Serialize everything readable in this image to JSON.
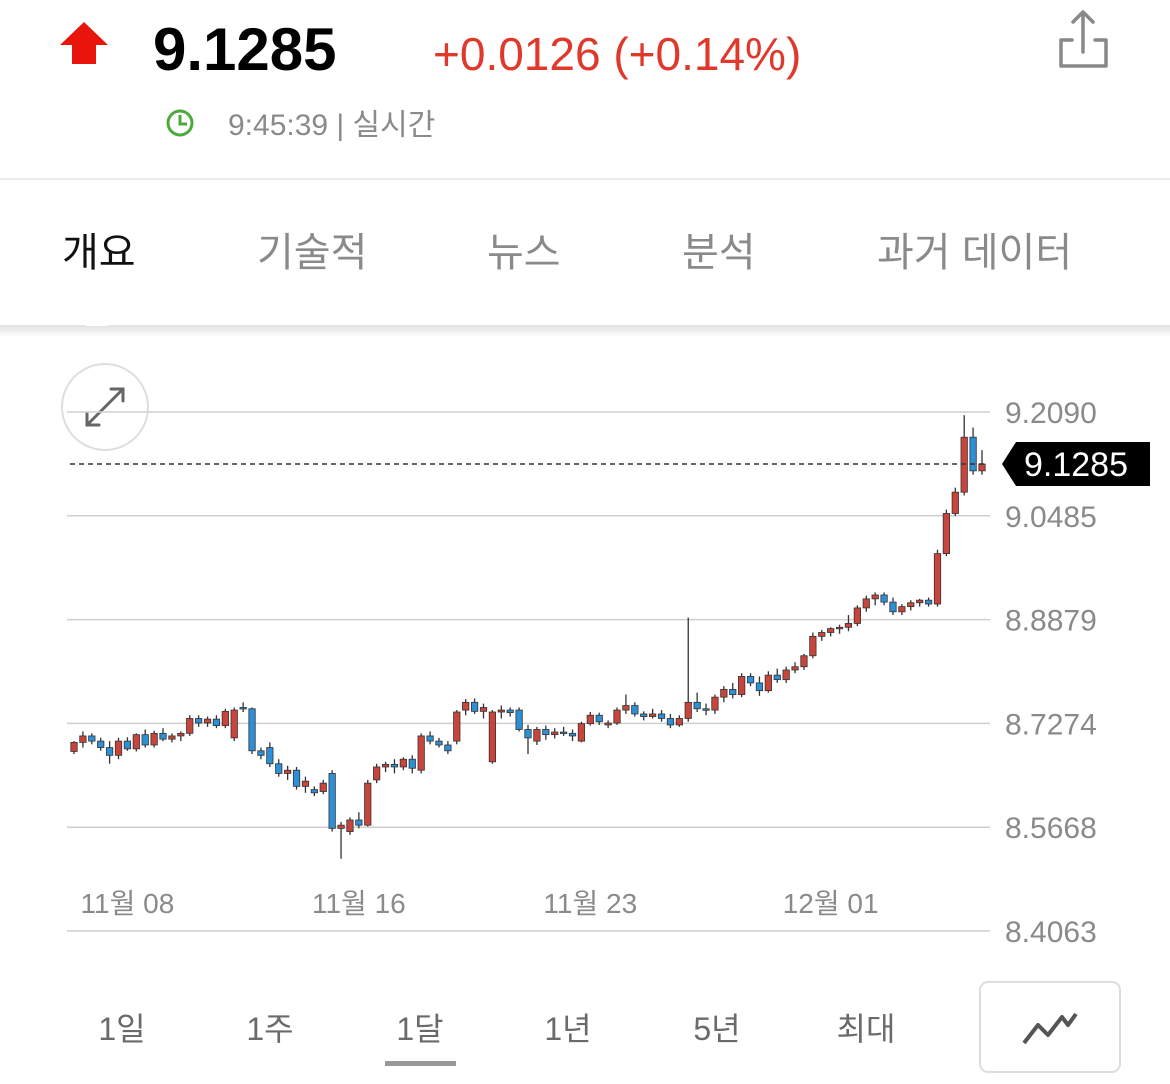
{
  "header": {
    "price": "9.1285",
    "change": "+0.0126 (+0.14%)",
    "time": "9:45:39 | 실시간"
  },
  "tabs": [
    "개요",
    "기술적",
    "뉴스",
    "분석",
    "과거 데이터"
  ],
  "chart_data": {
    "type": "candlestick",
    "categories": [
      null,
      null,
      null,
      null,
      null,
      null,
      "11월 08",
      null,
      null,
      null,
      null,
      null,
      null,
      null,
      null,
      null,
      null,
      null,
      null,
      null,
      null,
      null,
      null,
      null,
      null,
      null,
      null,
      null,
      null,
      null,
      null,
      null,
      "11월 16",
      null,
      null,
      null,
      null,
      null,
      null,
      null,
      null,
      null,
      null,
      null,
      null,
      null,
      null,
      null,
      null,
      null,
      null,
      null,
      null,
      null,
      null,
      null,
      null,
      null,
      "11월 23",
      null,
      null,
      null,
      null,
      null,
      null,
      null,
      null,
      null,
      null,
      null,
      null,
      null,
      null,
      null,
      null,
      null,
      null,
      null,
      null,
      null,
      null,
      null,
      null,
      null,
      null,
      "12월 01",
      null,
      null,
      null,
      null,
      null,
      null,
      null,
      null,
      null,
      null,
      null,
      null,
      null,
      null,
      null,
      null,
      null
    ],
    "open": [
      8.684,
      8.698,
      8.708,
      8.7,
      8.69,
      8.678,
      8.7,
      8.688,
      8.71,
      8.694,
      8.712,
      8.703,
      8.708,
      8.712,
      8.735,
      8.728,
      8.734,
      8.724,
      8.705,
      8.752,
      8.75,
      8.685,
      8.69,
      8.665,
      8.65,
      8.655,
      8.63,
      8.625,
      8.622,
      8.65,
      8.565,
      8.56,
      8.578,
      8.57,
      8.64,
      8.66,
      8.664,
      8.66,
      8.672,
      8.655,
      8.708,
      8.7,
      8.694,
      8.7,
      8.748,
      8.76,
      8.746,
      8.668,
      8.745,
      8.748,
      8.748,
      8.718,
      8.7,
      8.718,
      8.71,
      8.714,
      8.712,
      8.7,
      8.727,
      8.74,
      8.725,
      8.728,
      8.748,
      8.755,
      8.742,
      8.738,
      8.742,
      8.735,
      8.725,
      8.735,
      8.76,
      8.75,
      8.748,
      8.768,
      8.78,
      8.772,
      8.8,
      8.79,
      8.778,
      8.802,
      8.795,
      8.81,
      8.815,
      8.832,
      8.862,
      8.868,
      8.874,
      8.876,
      8.882,
      8.906,
      8.92,
      8.926,
      8.915,
      8.9,
      8.908,
      8.914,
      8.918,
      8.912,
      8.99,
      9.052,
      9.085,
      9.17,
      9.118
    ],
    "high": [
      8.7,
      8.715,
      8.712,
      8.705,
      8.7,
      8.705,
      8.706,
      8.712,
      8.718,
      8.716,
      8.72,
      8.712,
      8.715,
      8.74,
      8.74,
      8.738,
      8.74,
      8.75,
      8.752,
      8.76,
      8.752,
      8.69,
      8.698,
      8.672,
      8.662,
      8.66,
      8.645,
      8.63,
      8.64,
      8.655,
      8.575,
      8.582,
      8.59,
      8.64,
      8.665,
      8.668,
      8.672,
      8.675,
      8.678,
      8.712,
      8.715,
      8.705,
      8.7,
      8.748,
      8.765,
      8.766,
      8.758,
      8.748,
      8.755,
      8.752,
      8.752,
      8.725,
      8.722,
      8.724,
      8.72,
      8.722,
      8.718,
      8.73,
      8.745,
      8.744,
      8.732,
      8.752,
      8.772,
      8.76,
      8.746,
      8.75,
      8.748,
      8.742,
      8.74,
      8.891,
      8.775,
      8.758,
      8.772,
      8.785,
      8.79,
      8.805,
      8.805,
      8.8,
      8.808,
      8.812,
      8.815,
      8.822,
      8.835,
      8.868,
      8.872,
      8.876,
      8.88,
      8.895,
      8.91,
      8.925,
      8.93,
      8.93,
      8.922,
      8.912,
      8.918,
      8.92,
      8.922,
      8.996,
      9.058,
      9.092,
      9.204,
      9.185,
      9.15
    ],
    "low": [
      8.68,
      8.69,
      8.695,
      8.685,
      8.665,
      8.672,
      8.685,
      8.684,
      8.69,
      8.69,
      8.7,
      8.698,
      8.7,
      8.708,
      8.722,
      8.722,
      8.72,
      8.72,
      8.7,
      8.745,
      8.68,
      8.672,
      8.66,
      8.645,
      8.64,
      8.625,
      8.62,
      8.615,
      8.618,
      8.56,
      8.518,
      8.555,
      8.565,
      8.568,
      8.635,
      8.652,
      8.65,
      8.655,
      8.65,
      8.65,
      8.695,
      8.69,
      8.68,
      8.695,
      8.74,
      8.742,
      8.735,
      8.665,
      8.735,
      8.738,
      8.715,
      8.68,
      8.694,
      8.702,
      8.704,
      8.708,
      8.7,
      8.698,
      8.724,
      8.725,
      8.72,
      8.725,
      8.742,
      8.738,
      8.732,
      8.735,
      8.73,
      8.72,
      8.722,
      8.73,
      8.745,
      8.74,
      8.742,
      8.76,
      8.766,
      8.768,
      8.785,
      8.77,
      8.775,
      8.79,
      8.79,
      8.805,
      8.81,
      8.828,
      8.855,
      8.862,
      8.866,
      8.87,
      8.878,
      8.9,
      8.91,
      8.91,
      8.895,
      8.895,
      8.902,
      8.908,
      8.908,
      8.908,
      8.986,
      9.048,
      9.08,
      9.112,
      9.112
    ],
    "close": [
      8.698,
      8.708,
      8.7,
      8.69,
      8.678,
      8.7,
      8.688,
      8.71,
      8.694,
      8.712,
      8.703,
      8.708,
      8.712,
      8.735,
      8.728,
      8.734,
      8.724,
      8.746,
      8.748,
      8.75,
      8.685,
      8.678,
      8.665,
      8.65,
      8.655,
      8.63,
      8.638,
      8.62,
      8.635,
      8.565,
      8.57,
      8.578,
      8.57,
      8.635,
      8.66,
      8.664,
      8.66,
      8.672,
      8.658,
      8.708,
      8.7,
      8.694,
      8.685,
      8.745,
      8.76,
      8.746,
      8.752,
      8.745,
      8.748,
      8.744,
      8.718,
      8.705,
      8.718,
      8.71,
      8.714,
      8.712,
      8.708,
      8.727,
      8.74,
      8.73,
      8.728,
      8.748,
      8.755,
      8.742,
      8.738,
      8.742,
      8.735,
      8.725,
      8.735,
      8.76,
      8.75,
      8.748,
      8.768,
      8.78,
      8.772,
      8.8,
      8.79,
      8.778,
      8.802,
      8.795,
      8.81,
      8.815,
      8.832,
      8.862,
      8.868,
      8.874,
      8.876,
      8.882,
      8.906,
      8.92,
      8.926,
      8.915,
      8.9,
      8.908,
      8.914,
      8.918,
      8.912,
      8.99,
      9.052,
      9.085,
      9.17,
      9.118,
      9.1285
    ],
    "up_color": "#c9453b",
    "down_color": "#2d8fd5",
    "last_price": 9.1285,
    "ylim": [
      8.4063,
      9.209
    ],
    "yticks": [
      {
        "value": 9.209,
        "label": "9.2090"
      },
      9.0485,
      8.8879,
      8.7274,
      8.5668,
      8.4063
    ],
    "grid": true
  },
  "ranges": [
    "1일",
    "1주",
    "1달",
    "1년",
    "5년",
    "최대"
  ]
}
